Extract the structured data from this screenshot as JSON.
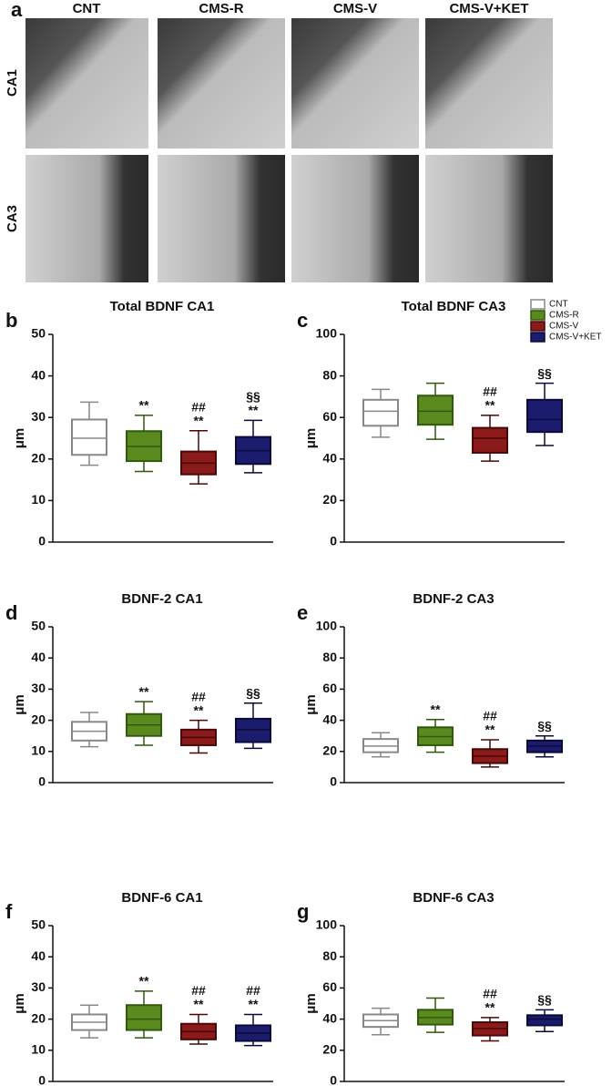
{
  "panel_a": {
    "label": "a",
    "columns": [
      "CNT",
      "CMS-R",
      "CMS-V",
      "CMS-V+KET"
    ],
    "rows": [
      "CA1",
      "CA3"
    ]
  },
  "groups": {
    "names": [
      "CNT",
      "CMS-R",
      "CMS-V",
      "CMS-V+KET"
    ],
    "colors": [
      "#ffffff",
      "#5a8a1e",
      "#8b1a1a",
      "#1c1c6e"
    ],
    "edge_colors": [
      "#888888",
      "#2f5a0c",
      "#4a0808",
      "#0a0a3a"
    ]
  },
  "chart_data": [
    {
      "type": "box",
      "label": "b",
      "title": "Total BDNF CA1",
      "ylabel": "μm",
      "ylim": [
        0,
        50
      ],
      "yticks": [
        0,
        10,
        20,
        30,
        40,
        50
      ],
      "boxes": [
        {
          "whislo": 18.5,
          "q1": 21,
          "med": 25,
          "q3": 29.5,
          "whishi": 33.7
        },
        {
          "whislo": 17,
          "q1": 19.5,
          "med": 23,
          "q3": 26.7,
          "whishi": 30.5
        },
        {
          "whislo": 14,
          "q1": 16.3,
          "med": 19,
          "q3": 21.8,
          "whishi": 26.8
        },
        {
          "whislo": 16.7,
          "q1": 18.8,
          "med": 22,
          "q3": 25.3,
          "whishi": 29.3
        }
      ],
      "annotations": [
        [],
        [
          "**"
        ],
        [
          "##",
          "**"
        ],
        [
          "§§",
          "**"
        ]
      ]
    },
    {
      "type": "box",
      "label": "c",
      "title": "Total BDNF CA3",
      "ylabel": "μm",
      "ylim": [
        0,
        100
      ],
      "yticks": [
        0,
        20,
        40,
        60,
        80,
        100
      ],
      "legend": "upper right",
      "boxes": [
        {
          "whislo": 50.5,
          "q1": 56,
          "med": 63,
          "q3": 68.5,
          "whishi": 73.5
        },
        {
          "whislo": 49.5,
          "q1": 56.5,
          "med": 63,
          "q3": 70.5,
          "whishi": 76.5
        },
        {
          "whislo": 39,
          "q1": 43,
          "med": 50,
          "q3": 55,
          "whishi": 61
        },
        {
          "whislo": 46.5,
          "q1": 53,
          "med": 59,
          "q3": 68.5,
          "whishi": 76.5
        }
      ],
      "annotations": [
        [],
        [],
        [
          "##",
          "**"
        ],
        [
          "§§"
        ]
      ]
    },
    {
      "type": "box",
      "label": "d",
      "title": "BDNF-2 CA1",
      "ylabel": "μm",
      "ylim": [
        0,
        50
      ],
      "yticks": [
        0,
        10,
        20,
        30,
        40,
        50
      ],
      "boxes": [
        {
          "whislo": 11.5,
          "q1": 13.5,
          "med": 16.5,
          "q3": 19.5,
          "whishi": 22.5
        },
        {
          "whislo": 12,
          "q1": 15,
          "med": 18.5,
          "q3": 22,
          "whishi": 26
        },
        {
          "whislo": 9.5,
          "q1": 12,
          "med": 14.5,
          "q3": 17,
          "whishi": 20
        },
        {
          "whislo": 11,
          "q1": 13,
          "med": 17,
          "q3": 20.5,
          "whishi": 25.5
        }
      ],
      "annotations": [
        [],
        [
          "**"
        ],
        [
          "##",
          "**"
        ],
        [
          "§§"
        ]
      ]
    },
    {
      "type": "box",
      "label": "e",
      "title": "BDNF-2 CA3",
      "ylabel": "μm",
      "ylim": [
        0,
        100
      ],
      "yticks": [
        0,
        20,
        40,
        60,
        80,
        100
      ],
      "boxes": [
        {
          "whislo": 16.5,
          "q1": 19.5,
          "med": 23.5,
          "q3": 28,
          "whishi": 32
        },
        {
          "whislo": 19.5,
          "q1": 24,
          "med": 29.5,
          "q3": 35.5,
          "whishi": 40.5
        },
        {
          "whislo": 10,
          "q1": 12.5,
          "med": 17,
          "q3": 21.5,
          "whishi": 27.5
        },
        {
          "whislo": 16.5,
          "q1": 19.5,
          "med": 23.5,
          "q3": 27,
          "whishi": 30
        }
      ],
      "annotations": [
        [],
        [
          "**"
        ],
        [
          "##",
          "**"
        ],
        [
          "§§"
        ]
      ]
    },
    {
      "type": "box",
      "label": "f",
      "title": "BDNF-6 CA1",
      "ylabel": "μm",
      "ylim": [
        0,
        50
      ],
      "yticks": [
        0,
        10,
        20,
        30,
        40,
        50
      ],
      "boxes": [
        {
          "whislo": 14,
          "q1": 16.5,
          "med": 19,
          "q3": 21.5,
          "whishi": 24.5
        },
        {
          "whislo": 14,
          "q1": 16.5,
          "med": 20,
          "q3": 24.5,
          "whishi": 29
        },
        {
          "whislo": 12,
          "q1": 13.5,
          "med": 16,
          "q3": 18.5,
          "whishi": 21.5
        },
        {
          "whislo": 11.5,
          "q1": 13,
          "med": 15.5,
          "q3": 18,
          "whishi": 21.5
        }
      ],
      "annotations": [
        [],
        [
          "**"
        ],
        [
          "##",
          "**"
        ],
        [
          "##",
          "**"
        ]
      ]
    },
    {
      "type": "box",
      "label": "g",
      "title": "BDNF-6 CA3",
      "ylabel": "μm",
      "ylim": [
        0,
        100
      ],
      "yticks": [
        0,
        20,
        40,
        60,
        80,
        100
      ],
      "boxes": [
        {
          "whislo": 30,
          "q1": 35,
          "med": 39,
          "q3": 43,
          "whishi": 47
        },
        {
          "whislo": 31.5,
          "q1": 36.5,
          "med": 41,
          "q3": 46,
          "whishi": 53.5
        },
        {
          "whislo": 26,
          "q1": 29.5,
          "med": 34,
          "q3": 38,
          "whishi": 41
        },
        {
          "whislo": 32,
          "q1": 36,
          "med": 40,
          "q3": 42.5,
          "whishi": 46
        }
      ],
      "annotations": [
        [],
        [],
        [
          "##",
          "**"
        ],
        [
          "§§"
        ]
      ]
    }
  ]
}
